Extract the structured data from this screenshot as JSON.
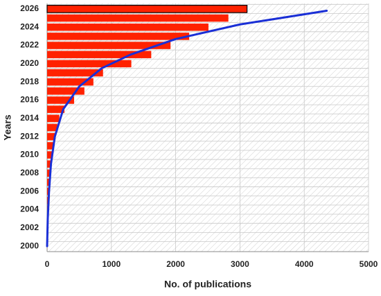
{
  "chart_data": {
    "type": "bar",
    "orientation": "horizontal",
    "xlabel": "No. of publications",
    "ylabel": "Years",
    "years": [
      2000,
      2001,
      2002,
      2003,
      2004,
      2005,
      2006,
      2007,
      2008,
      2009,
      2010,
      2011,
      2012,
      2013,
      2014,
      2015,
      2016,
      2017,
      2018,
      2019,
      2020,
      2021,
      2022,
      2023,
      2024,
      2025,
      2026
    ],
    "values": [
      1,
      2,
      3,
      5,
      8,
      10,
      20,
      30,
      45,
      55,
      75,
      100,
      130,
      160,
      190,
      270,
      420,
      580,
      720,
      870,
      1310,
      1620,
      1920,
      2210,
      2510,
      2820,
      3110
    ],
    "color": "#ff2200",
    "xlim": [
      0,
      5000
    ],
    "xticks": [
      0,
      1000,
      2000,
      3000,
      4000,
      5000
    ],
    "ylim": [
      1999.4,
      2026.6
    ],
    "yticks": [
      2000,
      2002,
      2004,
      2006,
      2008,
      2010,
      2012,
      2014,
      2016,
      2018,
      2020,
      2022,
      2024,
      2026
    ],
    "grid": true,
    "curve": {
      "type": "line",
      "color": "#1a2fd6",
      "x": [
        0,
        10,
        30,
        60,
        120,
        250,
        500,
        850,
        1300,
        2000,
        3000,
        4350
      ],
      "y": [
        2000,
        2003,
        2006,
        2009,
        2012,
        2015,
        2017.5,
        2019.5,
        2021,
        2022.7,
        2024.3,
        2025.8
      ]
    }
  }
}
